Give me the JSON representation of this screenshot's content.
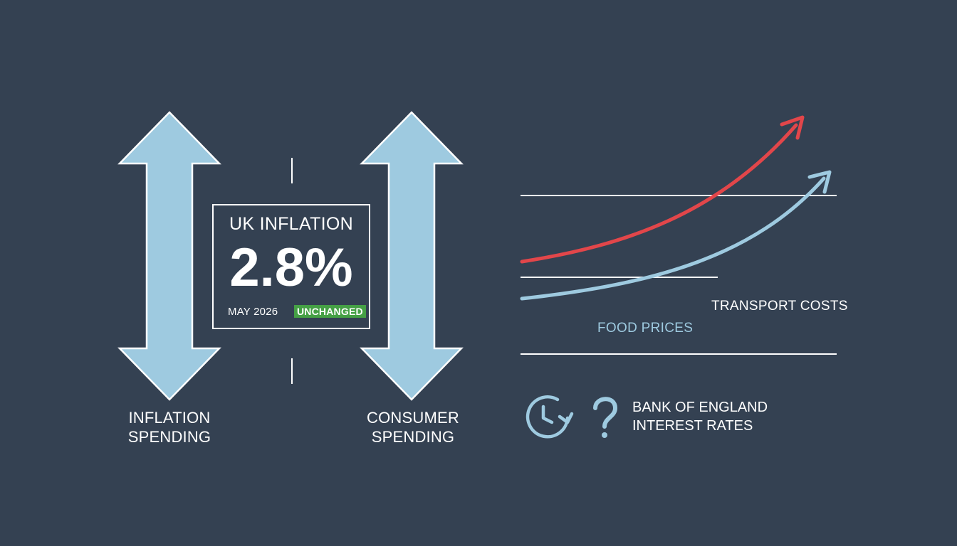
{
  "stat_card": {
    "title": "UK INFLATION",
    "value": "2.8%",
    "date": "MAY 2026",
    "status": "UNCHANGED"
  },
  "arrows": {
    "left": {
      "line1": "INFLATION",
      "line2": "SPENDING",
      "icon": "up-down-arrow-icon"
    },
    "right": {
      "line1": "CONSUMER",
      "line2": "SPENDING",
      "icon": "up-down-arrow-icon"
    }
  },
  "trend": {
    "transport_label": "TRANSPORT COSTS",
    "food_label": "FOOD PRICES"
  },
  "bank": {
    "line1": "BANK OF ENGLAND",
    "line2": "INTEREST RATES",
    "icons": [
      "clock-refresh-icon",
      "question-mark-icon"
    ]
  },
  "colors": {
    "background": "#344152",
    "arrow_fill": "#9ecae0",
    "transport_line": "#e2464a",
    "food_line": "#9ecae0",
    "badge_green": "#45a045",
    "food_label": "#9ecae0"
  }
}
